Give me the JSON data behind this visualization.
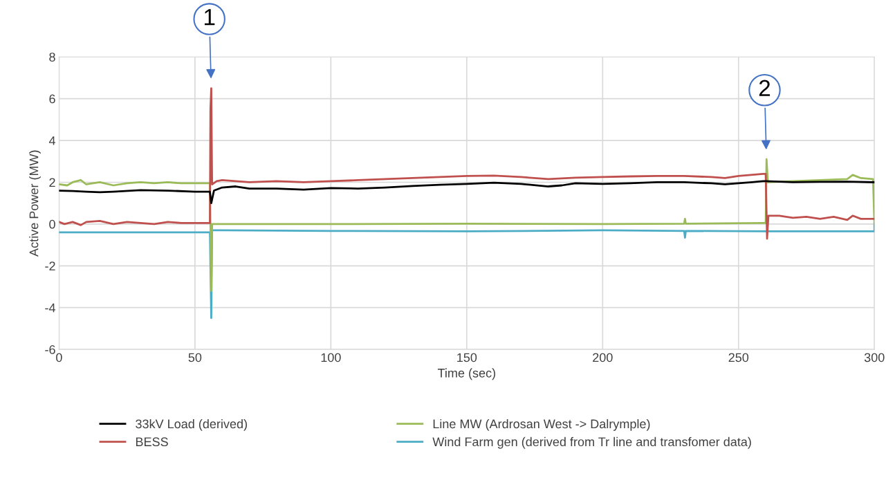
{
  "chart_data": {
    "type": "line",
    "xlabel": "Time (sec)",
    "ylabel": "Active Power (MW)",
    "xlim": [
      0,
      300
    ],
    "xticks": [
      0,
      50,
      100,
      150,
      200,
      250,
      300
    ],
    "ylim": [
      -6,
      8
    ],
    "yticks": [
      -6,
      -4,
      -2,
      0,
      2,
      4,
      6,
      8
    ],
    "grid": true,
    "legend": "bottom",
    "marker": "none",
    "line_style": "solid",
    "series": [
      {
        "name": "33kV Load (derived)",
        "color": "#000000",
        "x": [
          0,
          5,
          10,
          15,
          20,
          30,
          40,
          50,
          55.5,
          56,
          57,
          60,
          65,
          70,
          80,
          90,
          100,
          110,
          120,
          130,
          140,
          150,
          160,
          170,
          180,
          185,
          190,
          200,
          210,
          220,
          230,
          240,
          245,
          250,
          255,
          259,
          260,
          270,
          280,
          290,
          300
        ],
        "values": [
          1.6,
          1.58,
          1.55,
          1.52,
          1.55,
          1.62,
          1.6,
          1.55,
          1.55,
          1.0,
          1.6,
          1.75,
          1.8,
          1.7,
          1.7,
          1.65,
          1.72,
          1.7,
          1.75,
          1.82,
          1.88,
          1.92,
          1.98,
          1.92,
          1.8,
          1.85,
          1.95,
          1.92,
          1.95,
          2.0,
          2.0,
          1.95,
          1.9,
          1.95,
          2.0,
          2.05,
          2.05,
          2.0,
          2.02,
          2.03,
          2.0
        ]
      },
      {
        "name": "BESS",
        "color": "#c0504d",
        "x": [
          0,
          2,
          5,
          8,
          10,
          15,
          20,
          25,
          30,
          35,
          40,
          45,
          50,
          55.5,
          55.7,
          56,
          56.3,
          58,
          60,
          70,
          80,
          90,
          100,
          110,
          120,
          130,
          140,
          150,
          160,
          170,
          180,
          190,
          200,
          210,
          220,
          230,
          240,
          245,
          250,
          259,
          260,
          260.5,
          261,
          265,
          270,
          275,
          280,
          285,
          290,
          292,
          295,
          300
        ],
        "values": [
          0.1,
          0.0,
          0.1,
          -0.05,
          0.1,
          0.15,
          0.0,
          0.1,
          0.05,
          0.0,
          0.1,
          0.05,
          0.05,
          0.05,
          5.5,
          6.5,
          1.9,
          2.05,
          2.1,
          2.0,
          2.05,
          2.0,
          2.05,
          2.1,
          2.15,
          2.2,
          2.25,
          2.3,
          2.32,
          2.25,
          2.15,
          2.22,
          2.25,
          2.28,
          2.3,
          2.3,
          2.25,
          2.2,
          2.3,
          2.4,
          2.4,
          -0.7,
          0.4,
          0.4,
          0.3,
          0.35,
          0.25,
          0.35,
          0.2,
          0.4,
          0.25,
          0.25
        ]
      },
      {
        "name": "Line MW (Ardrosan West -> Dalrymple)",
        "color": "#9bbb59",
        "x": [
          0,
          3,
          5,
          8,
          10,
          15,
          20,
          25,
          30,
          35,
          40,
          45,
          50,
          55.5,
          56,
          56.3,
          60,
          100,
          150,
          200,
          230,
          230.3,
          230.6,
          259,
          260,
          260.3,
          260.8,
          270,
          280,
          290,
          292,
          295,
          299.5,
          300
        ],
        "values": [
          1.9,
          1.85,
          2.0,
          2.1,
          1.9,
          2.0,
          1.85,
          1.95,
          2.0,
          1.95,
          2.0,
          1.95,
          1.95,
          1.95,
          -3.2,
          0.0,
          0.0,
          0.0,
          0.02,
          0.0,
          0.02,
          0.25,
          0.02,
          0.05,
          0.05,
          3.1,
          2.0,
          2.05,
          2.1,
          2.15,
          2.35,
          2.2,
          2.15,
          0.0
        ]
      },
      {
        "name": "Wind Farm gen (derived from Tr line and transfomer data)",
        "color": "#4bacc6",
        "x": [
          0,
          50,
          55.5,
          56,
          56.3,
          60,
          100,
          150,
          200,
          230,
          230.3,
          230.6,
          260,
          265,
          300,
          300
        ],
        "values": [
          -0.4,
          -0.4,
          -0.4,
          -4.5,
          -0.3,
          -0.3,
          -0.33,
          -0.35,
          -0.3,
          -0.33,
          -0.65,
          -0.33,
          -0.35,
          -0.35,
          -0.35,
          0.0
        ]
      }
    ],
    "annotations": [
      {
        "text": "1",
        "x": 56,
        "y": 6.5
      },
      {
        "text": "2",
        "x": 260.3,
        "y": 3.1
      }
    ]
  }
}
